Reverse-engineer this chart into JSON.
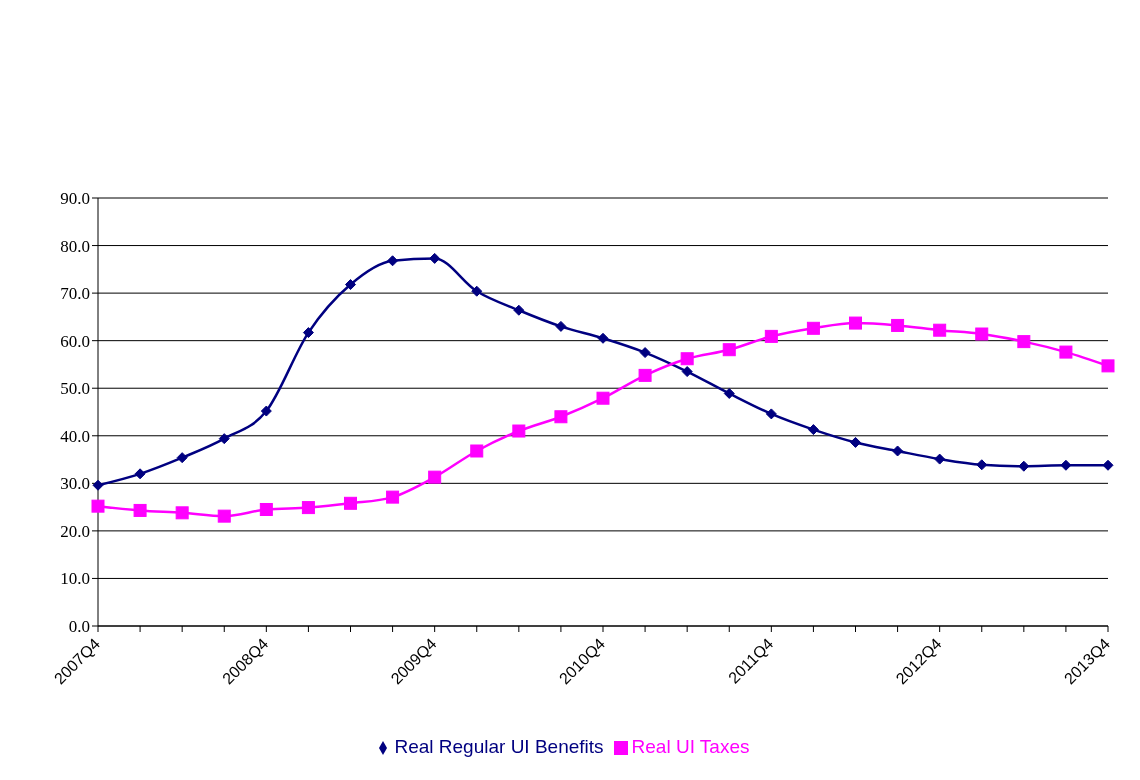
{
  "chart_data": {
    "type": "line",
    "categories": [
      "2007Q4",
      null,
      null,
      null,
      "2008Q4",
      null,
      null,
      null,
      "2009Q4",
      null,
      null,
      null,
      "2010Q4",
      null,
      null,
      null,
      "2011Q4",
      null,
      null,
      null,
      "2012Q4",
      null,
      null,
      null,
      "2013Q4"
    ],
    "series": [
      {
        "name": "Real Regular UI Benefits",
        "color": "#000080",
        "marker": "diamond",
        "values": [
          29.6,
          32.0,
          35.4,
          39.4,
          45.2,
          61.7,
          71.8,
          76.8,
          77.3,
          70.4,
          66.4,
          63.0,
          60.5,
          57.5,
          53.5,
          48.9,
          44.6,
          41.3,
          38.6,
          36.8,
          35.1,
          33.9,
          33.6,
          33.8,
          33.8
        ]
      },
      {
        "name": "Real UI Taxes",
        "color": "#ff00ff",
        "marker": "square",
        "values": [
          25.2,
          24.3,
          23.8,
          23.1,
          24.5,
          24.9,
          25.8,
          27.1,
          31.3,
          36.8,
          41.0,
          44.0,
          47.9,
          52.7,
          56.2,
          58.1,
          60.9,
          62.6,
          63.7,
          63.2,
          62.2,
          61.4,
          59.8,
          57.6,
          54.7
        ]
      }
    ],
    "ylim": [
      0,
      90
    ],
    "yticks": [
      {
        "value": 0,
        "label": "0.0"
      },
      {
        "value": 10,
        "label": "10.0"
      },
      {
        "value": 20,
        "label": "20.0"
      },
      {
        "value": 30,
        "label": "30.0"
      },
      {
        "value": 40,
        "label": "40.0"
      },
      {
        "value": 50,
        "label": "50.0"
      },
      {
        "value": 60,
        "label": "60.0"
      },
      {
        "value": 70,
        "label": "70.0"
      },
      {
        "value": 80,
        "label": "80.0"
      },
      {
        "value": 90,
        "label": "90.0"
      }
    ],
    "grid": "y",
    "legend": "bottom"
  }
}
